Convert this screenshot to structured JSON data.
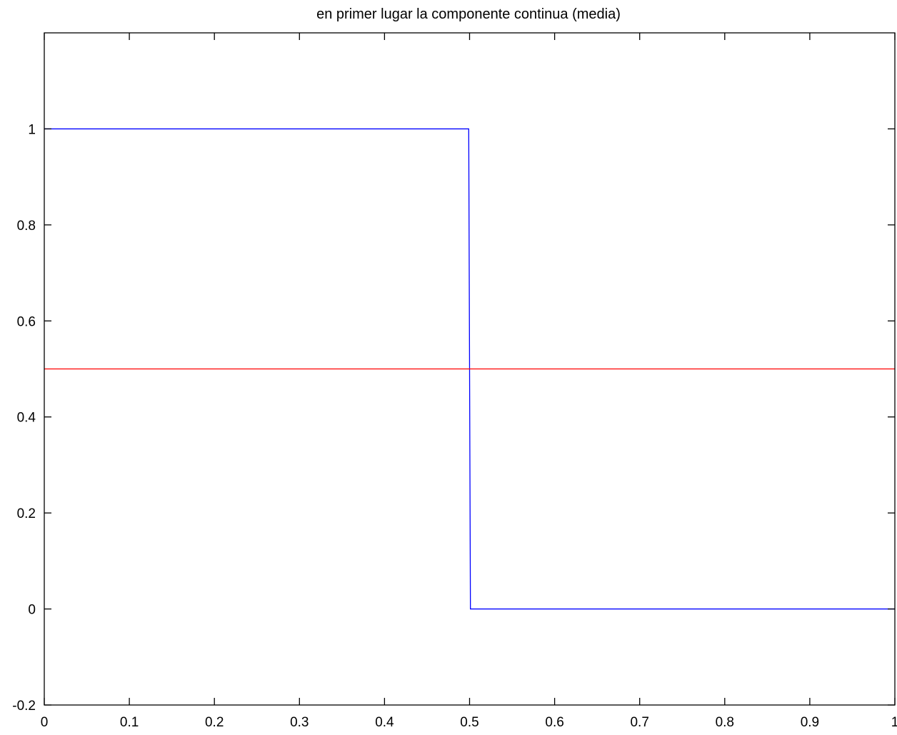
{
  "chart_data": {
    "type": "line",
    "title": "en primer lugar la componente continua (media)",
    "xlabel": "",
    "ylabel": "",
    "xlim": [
      0,
      1
    ],
    "ylim": [
      -0.2,
      1.2
    ],
    "xticks": [
      0,
      0.1,
      0.2,
      0.3,
      0.4,
      0.5,
      0.6,
      0.7,
      0.8,
      0.9,
      1
    ],
    "xtick_labels": [
      "0",
      "0.1",
      "0.2",
      "0.3",
      "0.4",
      "0.5",
      "0.6",
      "0.7",
      "0.8",
      "0.9",
      "1"
    ],
    "yticks": [
      -0.2,
      0,
      0.2,
      0.4,
      0.6,
      0.8,
      1
    ],
    "ytick_labels": [
      "-0.2",
      "0",
      "0.2",
      "0.4",
      "0.6",
      "0.8",
      "1"
    ],
    "grid": false,
    "series": [
      {
        "color": "#0000ff",
        "x": [
          0,
          0.499,
          0.501,
          1
        ],
        "y": [
          1,
          1,
          0,
          0
        ]
      },
      {
        "color": "#ff0000",
        "x": [
          0,
          1
        ],
        "y": [
          0.5,
          0.5
        ]
      }
    ]
  }
}
